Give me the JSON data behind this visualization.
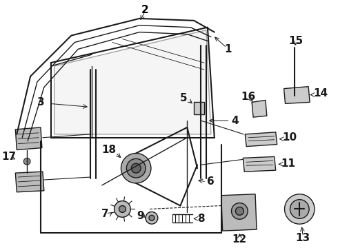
{
  "bg_color": "#ffffff",
  "line_color": "#1a1a1a",
  "label_color": "#000000",
  "font_size": 9,
  "font_size_large": 11,
  "figsize": [
    4.9,
    3.6
  ],
  "dpi": 100
}
